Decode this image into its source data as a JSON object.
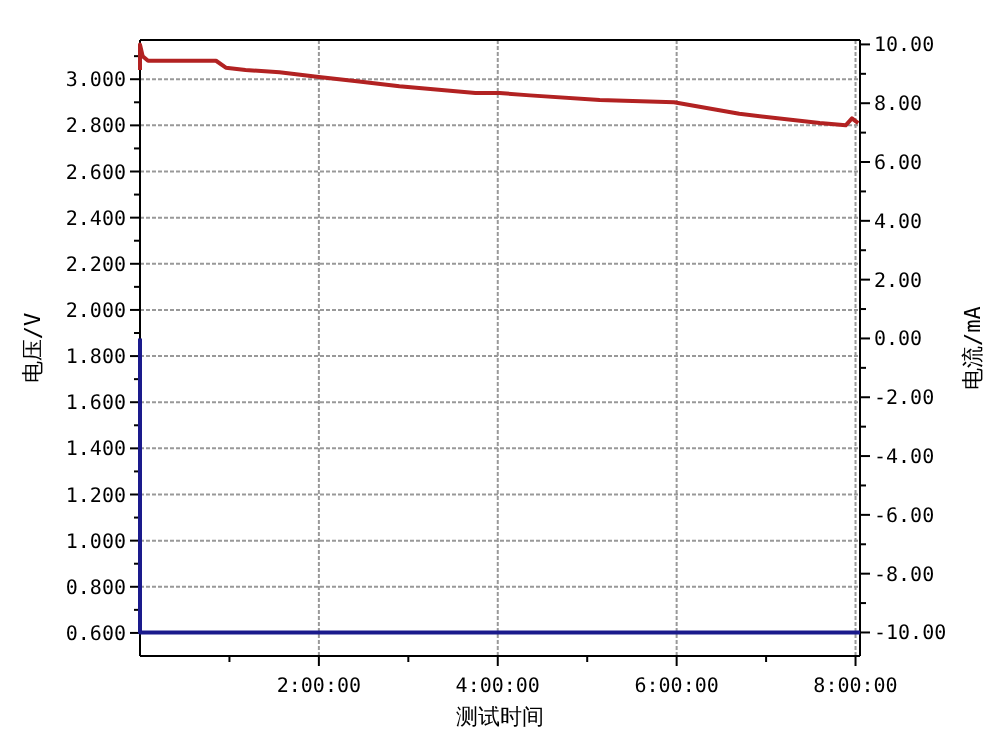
{
  "chart_data": {
    "type": "line",
    "xlabel": "测试时间",
    "ylabel": "电压/V",
    "y2label": "电流/mA",
    "xlim": [
      0,
      8.05
    ],
    "ylim": [
      0.5,
      3.17
    ],
    "y2lim": [
      -10.8,
      10.15
    ],
    "xticks": [
      {
        "value": 1,
        "label": null
      },
      {
        "value": 2,
        "label": "2:00:00"
      },
      {
        "value": 3,
        "label": null
      },
      {
        "value": 4,
        "label": "4:00:00"
      },
      {
        "value": 5,
        "label": null
      },
      {
        "value": 6,
        "label": "6:00:00"
      },
      {
        "value": 7,
        "label": null
      },
      {
        "value": 8,
        "label": "8:00:00"
      }
    ],
    "yticks": [
      {
        "value": 0.6,
        "label": "0.600"
      },
      {
        "value": 0.7,
        "label": null
      },
      {
        "value": 0.8,
        "label": "0.800"
      },
      {
        "value": 0.9,
        "label": null
      },
      {
        "value": 1.0,
        "label": "1.000"
      },
      {
        "value": 1.1,
        "label": null
      },
      {
        "value": 1.2,
        "label": "1.200"
      },
      {
        "value": 1.3,
        "label": null
      },
      {
        "value": 1.4,
        "label": "1.400"
      },
      {
        "value": 1.5,
        "label": null
      },
      {
        "value": 1.6,
        "label": "1.600"
      },
      {
        "value": 1.7,
        "label": null
      },
      {
        "value": 1.8,
        "label": "1.800"
      },
      {
        "value": 1.9,
        "label": null
      },
      {
        "value": 2.0,
        "label": "2.000"
      },
      {
        "value": 2.1,
        "label": null
      },
      {
        "value": 2.2,
        "label": "2.200"
      },
      {
        "value": 2.3,
        "label": null
      },
      {
        "value": 2.4,
        "label": "2.400"
      },
      {
        "value": 2.5,
        "label": null
      },
      {
        "value": 2.6,
        "label": "2.600"
      },
      {
        "value": 2.7,
        "label": null
      },
      {
        "value": 2.8,
        "label": "2.800"
      },
      {
        "value": 2.9,
        "label": null
      },
      {
        "value": 3.0,
        "label": "3.000"
      },
      {
        "value": 3.1,
        "label": null
      }
    ],
    "y2ticks": [
      {
        "value": -10,
        "label": "-10.00"
      },
      {
        "value": -9,
        "label": null
      },
      {
        "value": -8,
        "label": "-8.00"
      },
      {
        "value": -7,
        "label": null
      },
      {
        "value": -6,
        "label": "-6.00"
      },
      {
        "value": -5,
        "label": null
      },
      {
        "value": -4,
        "label": "-4.00"
      },
      {
        "value": -3,
        "label": null
      },
      {
        "value": -2,
        "label": "-2.00"
      },
      {
        "value": -1,
        "label": null
      },
      {
        "value": 0,
        "label": "0.00"
      },
      {
        "value": 1,
        "label": null
      },
      {
        "value": 2,
        "label": "2.00"
      },
      {
        "value": 3,
        "label": null
      },
      {
        "value": 4,
        "label": "4.00"
      },
      {
        "value": 5,
        "label": null
      },
      {
        "value": 6,
        "label": "6.00"
      },
      {
        "value": 7,
        "label": null
      },
      {
        "value": 8,
        "label": "8.00"
      },
      {
        "value": 9,
        "label": null
      },
      {
        "value": 10,
        "label": "10.00"
      }
    ],
    "grid": true,
    "line_style": "solid",
    "series": [
      {
        "color": "#b22222",
        "x": [
          0,
          0,
          0.03,
          0.09,
          0.85,
          0.96,
          1.18,
          1.56,
          2.0,
          2.45,
          2.9,
          3.75,
          4.02,
          4.36,
          5.14,
          5.97,
          6.7,
          7.6,
          7.89,
          7.96,
          8.03
        ],
        "values": [
          3.04,
          3.15,
          3.1,
          3.08,
          3.08,
          3.05,
          3.04,
          3.03,
          3.01,
          2.99,
          2.97,
          2.94,
          2.94,
          2.93,
          2.91,
          2.9,
          2.85,
          2.81,
          2.8,
          2.83,
          2.81
        ]
      },
      {
        "color": "#1a1a8c",
        "axis": "y2",
        "x": [
          0,
          0,
          8.05
        ],
        "values": [
          0,
          -10,
          -10
        ]
      }
    ]
  }
}
